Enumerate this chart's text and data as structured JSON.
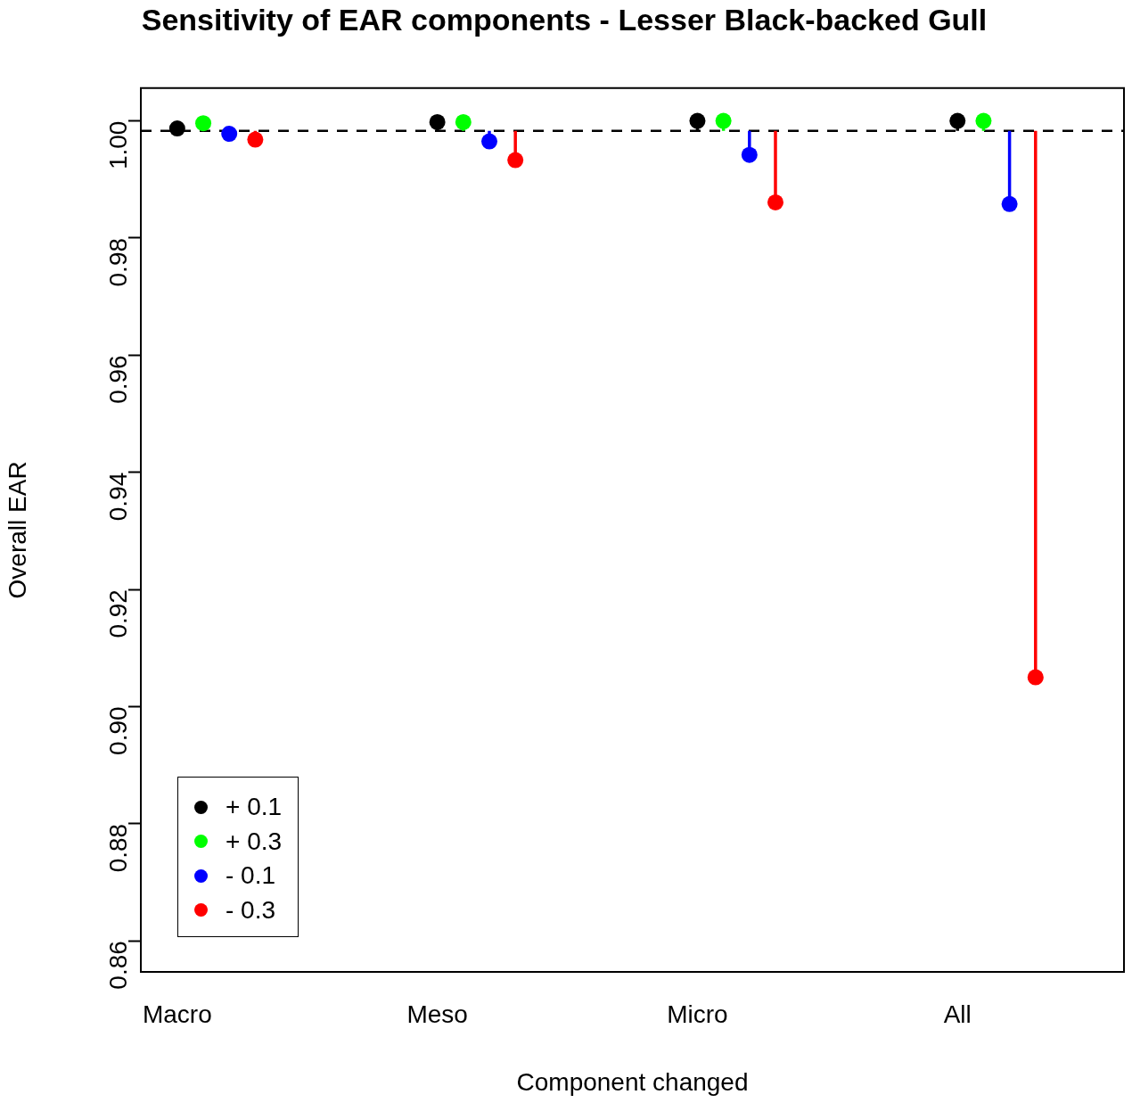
{
  "chart_data": {
    "type": "lollipop",
    "title": "Sensitivity of EAR components - Lesser Black-backed Gull",
    "xlabel": "Component changed",
    "ylabel": "Overall EAR",
    "categories": [
      "Macro",
      "Meso",
      "Micro",
      "All"
    ],
    "series": [
      {
        "name": "+ 0.1",
        "color": "#000000",
        "values": [
          0.9987,
          0.9998,
          1.0,
          1.0
        ]
      },
      {
        "name": "+ 0.3",
        "color": "#00ff00",
        "values": [
          0.9996,
          0.9998,
          1.0,
          1.0
        ]
      },
      {
        "name": "- 0.1",
        "color": "#0000ff",
        "values": [
          0.9978,
          0.9965,
          0.9942,
          0.9858
        ]
      },
      {
        "name": "- 0.3",
        "color": "#ff0000",
        "values": [
          0.9968,
          0.9933,
          0.9861,
          0.905
        ]
      }
    ],
    "ylim": [
      0.8547,
      1.0056
    ],
    "yticks": [
      {
        "value": 0.86,
        "label": "0.86"
      },
      {
        "value": 0.88,
        "label": "0.88"
      },
      {
        "value": 0.9,
        "label": "0.90"
      },
      {
        "value": 0.92,
        "label": "0.92"
      },
      {
        "value": 0.94,
        "label": "0.94"
      },
      {
        "value": 0.96,
        "label": "0.96"
      },
      {
        "value": 0.98,
        "label": "0.98"
      },
      {
        "value": 1.0,
        "label": "1.00"
      }
    ],
    "ref_lines": [
      {
        "axis": "y",
        "value": 0.9983,
        "color": "#000000",
        "line_style": "dashed"
      }
    ],
    "grid": false,
    "legend": "bottom left",
    "marker": "circle"
  }
}
